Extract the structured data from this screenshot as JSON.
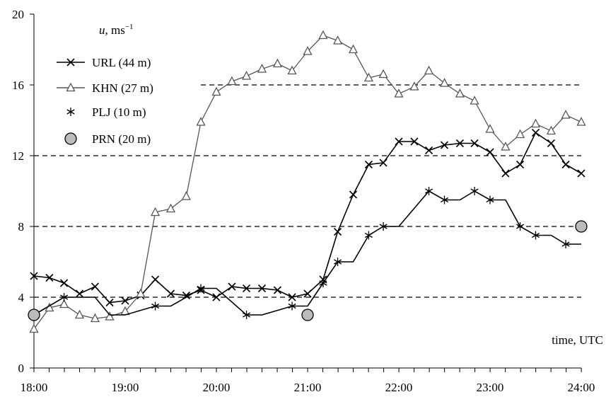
{
  "chart_data": {
    "type": "line",
    "ylabel_var": "u",
    "ylabel_unit": ", ms",
    "ylabel_exp": "−1",
    "xlabel": "time, UTC",
    "xlim": [
      18.0,
      24.0
    ],
    "ylim": [
      0,
      20
    ],
    "x_ticks": [
      {
        "value": 18,
        "label": "18:00"
      },
      {
        "value": 19,
        "label": "19:00"
      },
      {
        "value": 20,
        "label": "20:00"
      },
      {
        "value": 21,
        "label": "21:00"
      },
      {
        "value": 22,
        "label": "22:00"
      },
      {
        "value": 23,
        "label": "23:00"
      },
      {
        "value": 24,
        "label": "24:00"
      }
    ],
    "y_ticks": [
      {
        "value": 0,
        "label": "0"
      },
      {
        "value": 4,
        "label": "4"
      },
      {
        "value": 8,
        "label": "8"
      },
      {
        "value": 12,
        "label": "12"
      },
      {
        "value": 16,
        "label": "16"
      },
      {
        "value": 20,
        "label": "20"
      }
    ],
    "minor_x_step_hours": 0.1667,
    "reference_lines": [
      {
        "y": 4,
        "x_from": 18.0,
        "x_to": 24.0
      },
      {
        "y": 8,
        "x_from": 18.0,
        "x_to": 24.0
      },
      {
        "y": 12,
        "x_from": 18.0,
        "x_to": 24.0
      },
      {
        "y": 16,
        "x_from": 19.83,
        "x_to": 24.0
      }
    ],
    "legend_placement": "top-left",
    "series": [
      {
        "name": "URL (44 m)",
        "color": "#000000",
        "marker": "x",
        "x": [
          18.0,
          18.17,
          18.33,
          18.5,
          18.67,
          18.83,
          19.0,
          19.17,
          19.33,
          19.5,
          19.67,
          19.83,
          20.0,
          20.17,
          20.33,
          20.5,
          20.67,
          20.83,
          21.0,
          21.17,
          21.33,
          21.5,
          21.67,
          21.83,
          22.0,
          22.17,
          22.33,
          22.5,
          22.67,
          22.83,
          23.0,
          23.17,
          23.33,
          23.5,
          23.67,
          23.83,
          24.0
        ],
        "y": [
          5.2,
          5.1,
          4.8,
          4.2,
          4.6,
          3.7,
          3.8,
          4.1,
          5.0,
          4.2,
          4.1,
          4.4,
          4.0,
          4.6,
          4.5,
          4.5,
          4.4,
          4.0,
          4.2,
          5.0,
          7.7,
          9.8,
          11.5,
          11.6,
          12.8,
          12.8,
          12.3,
          12.6,
          12.7,
          12.7,
          12.2,
          11.0,
          11.5,
          13.3,
          12.7,
          11.5,
          11.0
        ]
      },
      {
        "name": "KHN (27 m)",
        "color": "#555555",
        "marker": "triangle",
        "x": [
          18.0,
          18.17,
          18.33,
          18.5,
          18.67,
          18.83,
          19.0,
          19.17,
          19.33,
          19.5,
          19.67,
          19.83,
          20.0,
          20.17,
          20.33,
          20.5,
          20.67,
          20.83,
          21.0,
          21.17,
          21.33,
          21.5,
          21.67,
          21.83,
          22.0,
          22.17,
          22.33,
          22.5,
          22.67,
          22.83,
          23.0,
          23.17,
          23.33,
          23.5,
          23.67,
          23.83,
          24.0
        ],
        "y": [
          2.2,
          3.4,
          3.6,
          3.0,
          2.8,
          2.9,
          3.2,
          4.2,
          8.8,
          9.0,
          9.7,
          13.9,
          15.6,
          16.2,
          16.5,
          16.9,
          17.2,
          16.8,
          17.9,
          18.8,
          18.5,
          18.0,
          16.4,
          16.6,
          15.5,
          15.9,
          16.8,
          16.1,
          15.5,
          15.1,
          13.5,
          12.5,
          13.2,
          13.8,
          13.4,
          14.3,
          13.9
        ]
      },
      {
        "name": "PLJ (10 m)",
        "color": "#000000",
        "marker": "asterisk",
        "x": [
          18.0,
          18.33,
          18.67,
          18.83,
          19.0,
          19.33,
          19.5,
          19.67,
          19.83,
          20.0,
          20.33,
          20.5,
          20.83,
          21.0,
          21.17,
          21.33,
          21.5,
          21.67,
          21.83,
          22.0,
          22.33,
          22.5,
          22.67,
          22.83,
          23.0,
          23.17,
          23.33,
          23.5,
          23.67,
          23.83,
          24.0
        ],
        "y": [
          3.0,
          4.0,
          4.0,
          3.0,
          3.0,
          3.5,
          3.5,
          4.0,
          4.5,
          4.5,
          3.0,
          3.0,
          3.5,
          3.5,
          4.8,
          6.0,
          6.0,
          7.5,
          8.0,
          8.0,
          10.0,
          9.5,
          9.5,
          10.0,
          9.5,
          9.5,
          8.0,
          7.5,
          7.5,
          7.0,
          7.0
        ],
        "marker_x": [
          18.33,
          19.33,
          19.83,
          20.33,
          20.83,
          21.17,
          21.33,
          21.67,
          21.83,
          22.33,
          22.5,
          22.83,
          23.0,
          23.33,
          23.5,
          23.83
        ],
        "marker_y": [
          4.0,
          3.5,
          4.5,
          3.0,
          3.5,
          4.8,
          6.0,
          7.5,
          8.0,
          10.0,
          9.5,
          10.0,
          9.5,
          8.0,
          7.5,
          7.0
        ]
      },
      {
        "name": "PRN (20 m)",
        "color": "#bbbbbb",
        "marker": "circle",
        "x": [
          18.0,
          21.0,
          24.0
        ],
        "y": [
          3.0,
          3.0,
          8.0
        ]
      }
    ]
  }
}
